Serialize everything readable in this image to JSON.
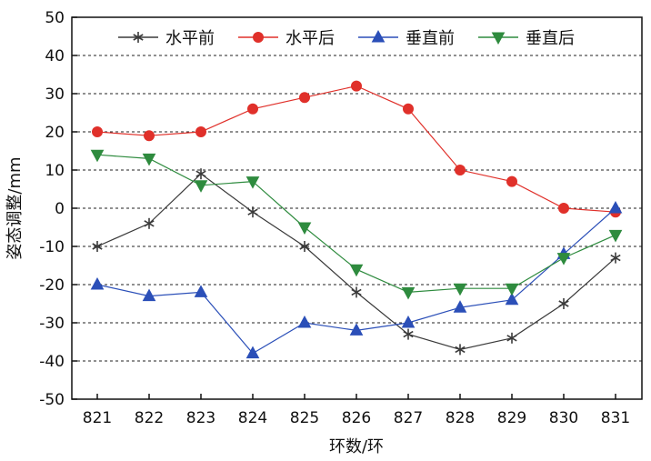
{
  "chart_data": {
    "type": "line",
    "title": "",
    "xlabel": "环数/环",
    "ylabel": "姿态调整/mm",
    "categories": [
      "821",
      "822",
      "823",
      "824",
      "825",
      "826",
      "827",
      "828",
      "829",
      "830",
      "831"
    ],
    "ylim": [
      -50,
      50
    ],
    "yticks": [
      -50,
      -40,
      -30,
      -20,
      -10,
      0,
      10,
      20,
      30,
      40,
      50
    ],
    "grid": "horizontal-dashed",
    "legend_position": "top",
    "series": [
      {
        "name": "水平前",
        "color": "#3a3a3a",
        "marker": "star",
        "values": [
          -10,
          -4,
          9,
          -1,
          -10,
          -22,
          -33,
          -37,
          -34,
          -25,
          -13
        ]
      },
      {
        "name": "水平后",
        "color": "#e0302a",
        "marker": "circle",
        "values": [
          20,
          19,
          20,
          26,
          29,
          32,
          26,
          10,
          7,
          0,
          -1
        ]
      },
      {
        "name": "垂直前",
        "color": "#2b4fb8",
        "marker": "triangle-up",
        "values": [
          -20,
          -23,
          -22,
          -38,
          -30,
          -32,
          -30,
          -26,
          -24,
          -12,
          0
        ]
      },
      {
        "name": "垂直后",
        "color": "#2e8b3e",
        "marker": "triangle-down",
        "values": [
          14,
          13,
          6,
          7,
          -5,
          -16,
          -22,
          -21,
          -21,
          -13,
          -7
        ]
      }
    ]
  }
}
